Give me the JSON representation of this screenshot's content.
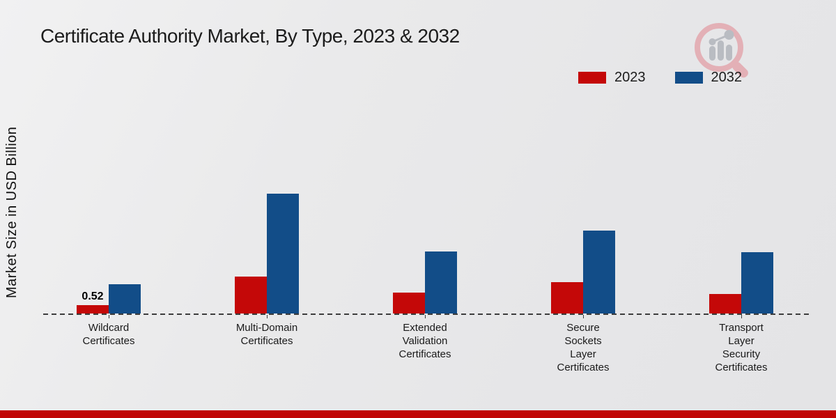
{
  "title": "Certificate Authority Market, By Type, 2023 & 2032",
  "ylabel": "Market Size in USD Billion",
  "legend": [
    {
      "label": "2023",
      "color": "#c40808"
    },
    {
      "label": "2032",
      "color": "#124d88"
    }
  ],
  "annotation": {
    "text": "0.52",
    "series_index": 0,
    "category_index": 0
  },
  "watermark_icon": "magnifier-bar-chart-logo",
  "footer": {
    "bar_color": "#c00505"
  },
  "colors": {
    "bar_2023": "#c40808",
    "bar_2032": "#124d88",
    "baseline": "#3c3c3c"
  },
  "chart_data": {
    "type": "bar",
    "title": "Certificate Authority Market, By Type, 2023 & 2032",
    "ylabel": "Market Size in USD Billion",
    "xlabel": "",
    "categories": [
      [
        "Wildcard",
        "Certificates"
      ],
      [
        "Multi-Domain",
        "Certificates"
      ],
      [
        "Extended",
        "Validation",
        "Certificates"
      ],
      [
        "Secure",
        "Sockets",
        "Layer",
        "Certificates"
      ],
      [
        "Transport",
        "Layer",
        "Security",
        "Certificates"
      ]
    ],
    "series": [
      {
        "name": "2023",
        "color": "#c40808",
        "values": [
          0.52,
          2.24,
          1.3,
          1.9,
          1.21
        ]
      },
      {
        "name": "2032",
        "color": "#124d88",
        "values": [
          1.78,
          7.34,
          3.8,
          5.06,
          3.77
        ]
      }
    ],
    "data_labels": [
      {
        "series": "2023",
        "category": "Wildcard Certificates",
        "text": "0.52"
      }
    ],
    "ylim": [
      0,
      8
    ],
    "grid": false,
    "baseline_style": "dashed",
    "legend_position": "top-right"
  }
}
